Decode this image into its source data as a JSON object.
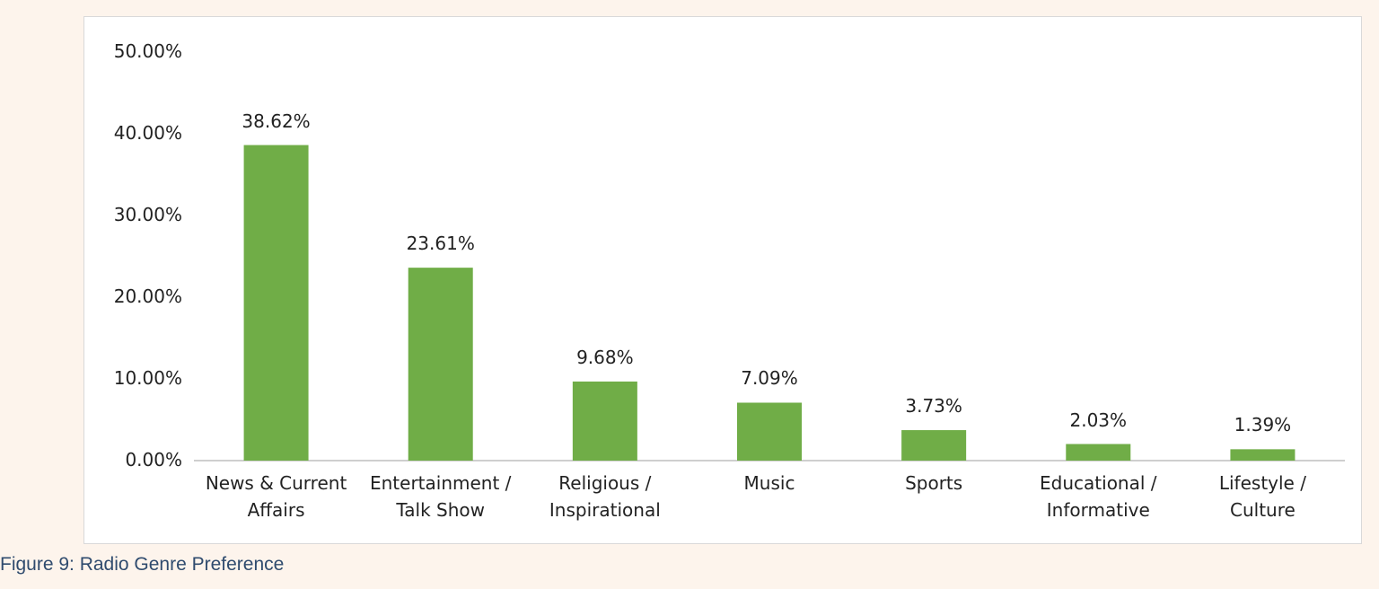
{
  "chart_data": {
    "type": "bar",
    "caption": "Figure 9: Radio Genre Preference",
    "categories": [
      "News & Current Affairs",
      "Entertainment / Talk Show",
      "Religious / Inspirational",
      "Music",
      "Sports",
      "Educational / Informative",
      "Lifestyle / Culture"
    ],
    "values": [
      38.62,
      23.61,
      9.68,
      7.09,
      3.73,
      2.03,
      1.39
    ],
    "value_labels": [
      "38.62%",
      "23.61%",
      "9.68%",
      "7.09%",
      "3.73%",
      "2.03%",
      "1.39%"
    ],
    "color": "#70ad47",
    "ylim": [
      0,
      50
    ],
    "yticks": [
      {
        "value": 0,
        "label": "0.00%"
      },
      {
        "value": 10,
        "label": "10.00%"
      },
      {
        "value": 20,
        "label": "20.00%"
      },
      {
        "value": 30,
        "label": "30.00%"
      },
      {
        "value": 40,
        "label": "40.00%"
      },
      {
        "value": 50,
        "label": "50.00%"
      }
    ],
    "grid": false
  }
}
